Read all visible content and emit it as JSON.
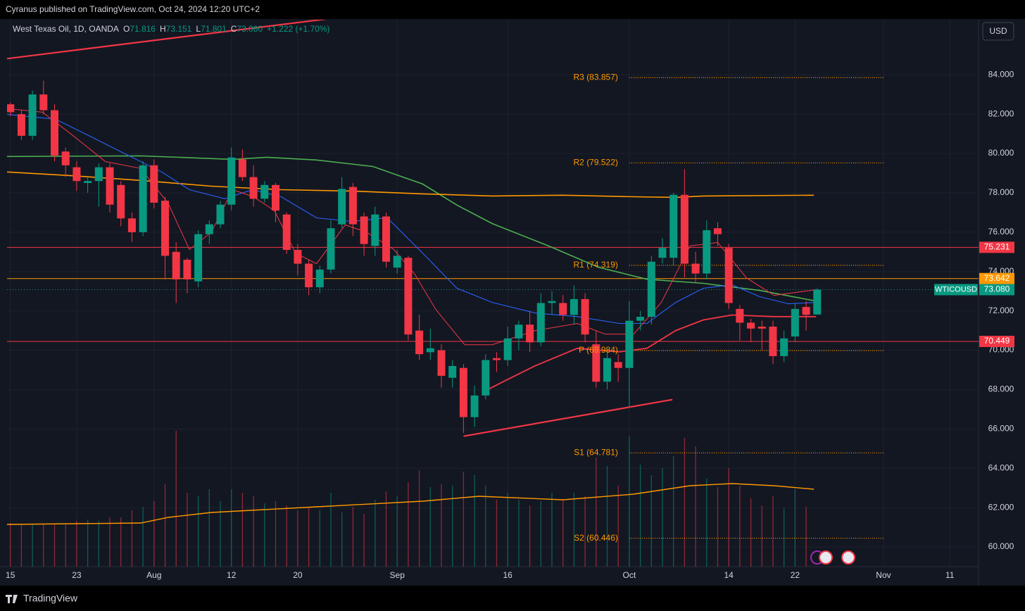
{
  "header": {
    "publisher": "Cyranus published on TradingView.com, Oct 24, 2024 12:20 UTC+2",
    "symbol": "West Texas Oil, 1D, OANDA",
    "ohlc_letters": [
      "O",
      "H",
      "L",
      "C"
    ],
    "close_label": "73.080",
    "change": "+1.222 (+1.70%)",
    "currency": "USD",
    "brand": "TradingView"
  },
  "chart_data": {
    "type": "candlestick",
    "xlim": [
      -0.3,
      87.6
    ],
    "xticks": [
      {
        "value": 0,
        "label": "15"
      },
      {
        "value": 6,
        "label": "23"
      },
      {
        "value": 13,
        "label": "Aug"
      },
      {
        "value": 20,
        "label": "12"
      },
      {
        "value": 26,
        "label": "20"
      },
      {
        "value": 35,
        "label": "Sep"
      },
      {
        "value": 45,
        "label": "16"
      },
      {
        "value": 56,
        "label": "Oct"
      },
      {
        "value": 65,
        "label": "14"
      },
      {
        "value": 71,
        "label": "22"
      },
      {
        "value": 79,
        "label": "Nov"
      },
      {
        "value": 85,
        "label": "11"
      }
    ],
    "ylim": [
      59.0,
      86.8
    ],
    "yticks": [
      {
        "value": 60,
        "label": "60.000"
      },
      {
        "value": 62,
        "label": "62.000"
      },
      {
        "value": 64,
        "label": "64.000"
      },
      {
        "value": 66,
        "label": "66.000"
      },
      {
        "value": 68,
        "label": "68.000"
      },
      {
        "value": 70,
        "label": "70.000"
      },
      {
        "value": 72,
        "label": "72.000"
      },
      {
        "value": 74,
        "label": "74.000"
      },
      {
        "value": 76,
        "label": "76.000"
      },
      {
        "value": 78,
        "label": "78.000"
      },
      {
        "value": 80,
        "label": "80.000"
      },
      {
        "value": 82,
        "label": "82.000"
      },
      {
        "value": 84,
        "label": "84.000"
      }
    ],
    "grid": true,
    "up_color": "#089981",
    "down_color": "#f23645",
    "x": [
      0,
      1,
      2,
      3,
      4,
      5,
      6,
      7,
      8,
      9,
      10,
      11,
      12,
      13,
      14,
      15,
      16,
      17,
      18,
      19,
      20,
      21,
      22,
      23,
      24,
      25,
      26,
      27,
      28,
      29,
      30,
      31,
      32,
      33,
      34,
      35,
      36,
      37,
      38,
      39,
      40,
      41,
      42,
      43,
      44,
      45,
      46,
      47,
      48,
      49,
      50,
      51,
      52,
      53,
      54,
      55,
      56,
      57,
      58,
      59,
      60,
      61,
      62,
      63,
      64,
      65,
      66,
      67,
      68,
      69,
      70,
      71,
      72,
      73
    ],
    "open": [
      82.5,
      82.0,
      80.9,
      83.0,
      82.2,
      80.1,
      79.3,
      78.5,
      78.6,
      79.3,
      78.4,
      76.7,
      76.0,
      79.4,
      77.6,
      75.0,
      74.6,
      73.5,
      75.9,
      76.4,
      77.4,
      79.7,
      78.8,
      77.7,
      78.4,
      76.9,
      75.1,
      74.4,
      73.2,
      74.1,
      76.4,
      78.3,
      76.8,
      75.3,
      76.8,
      74.2,
      74.7,
      71.0,
      69.9,
      70.0,
      68.6,
      69.1,
      66.6,
      67.7,
      69.6,
      69.5,
      70.6,
      71.3,
      70.4,
      72.4,
      72.4,
      71.8,
      72.6,
      70.3,
      68.4,
      69.4,
      69.1,
      71.5,
      71.7,
      74.7,
      74.7,
      77.9,
      74.4,
      73.9,
      76.2,
      75.2,
      72.1,
      71.4,
      71.2,
      71.2,
      69.7,
      70.7,
      72.2,
      71.816
    ],
    "high": [
      82.6,
      82.2,
      83.2,
      83.7,
      82.5,
      80.3,
      79.6,
      78.8,
      79.5,
      79.5,
      78.6,
      77.0,
      79.6,
      79.7,
      77.8,
      75.5,
      74.7,
      76.1,
      76.6,
      77.6,
      80.3,
      80.2,
      79.4,
      78.6,
      78.5,
      77.0,
      75.4,
      74.6,
      74.3,
      76.6,
      78.8,
      78.5,
      77.0,
      77.3,
      77.0,
      75.1,
      74.8,
      71.8,
      71.1,
      70.3,
      69.5,
      69.3,
      68.2,
      69.8,
      69.9,
      71.2,
      71.5,
      72.0,
      72.9,
      73.0,
      72.8,
      73.3,
      72.9,
      71.0,
      70.0,
      69.8,
      72.5,
      72.0,
      74.8,
      75.7,
      78.0,
      79.2,
      75.0,
      76.6,
      76.5,
      75.4,
      72.3,
      71.6,
      71.5,
      71.5,
      71.0,
      72.4,
      72.5,
      73.151
    ],
    "low": [
      81.9,
      80.7,
      80.7,
      82.0,
      79.6,
      78.8,
      78.1,
      78.0,
      77.3,
      77.0,
      76.3,
      75.5,
      75.8,
      77.2,
      73.6,
      72.4,
      72.9,
      73.2,
      75.4,
      76.2,
      77.1,
      78.6,
      77.3,
      77.5,
      76.5,
      74.9,
      73.8,
      72.8,
      72.9,
      73.9,
      76.2,
      75.8,
      74.8,
      74.8,
      74.2,
      73.9,
      70.5,
      69.5,
      69.5,
      68.1,
      68.1,
      65.8,
      66.1,
      67.5,
      68.9,
      69.2,
      70.0,
      69.9,
      70.2,
      71.8,
      71.5,
      71.3,
      70.4,
      68.1,
      68.0,
      68.4,
      67.1,
      71.0,
      71.3,
      74.4,
      74.3,
      73.7,
      73.4,
      73.6,
      75.3,
      72.1,
      70.5,
      70.4,
      70.0,
      69.3,
      69.4,
      70.4,
      71.0,
      71.801
    ],
    "close": [
      82.1,
      80.9,
      83.0,
      82.2,
      79.9,
      79.4,
      78.6,
      78.6,
      79.3,
      77.4,
      76.7,
      76.0,
      79.4,
      77.5,
      74.8,
      73.6,
      73.6,
      75.9,
      76.4,
      77.4,
      79.8,
      78.8,
      77.7,
      78.4,
      77.1,
      75.1,
      74.4,
      73.2,
      74.1,
      76.2,
      78.2,
      76.4,
      75.4,
      76.9,
      74.5,
      74.8,
      70.8,
      69.8,
      70.1,
      68.7,
      69.2,
      66.6,
      67.7,
      69.5,
      69.5,
      70.6,
      71.3,
      70.4,
      72.4,
      72.5,
      71.8,
      72.6,
      70.8,
      68.4,
      69.6,
      69.1,
      71.5,
      71.7,
      74.5,
      75.2,
      77.9,
      74.4,
      73.9,
      76.1,
      75.9,
      72.4,
      71.4,
      71.1,
      71.1,
      69.7,
      70.6,
      72.1,
      71.8,
      73.08
    ],
    "lines": [
      {
        "color": "#4caf50",
        "width": 1.6,
        "x": [
          -0.3,
          11.8,
          20.1,
          23.2,
          27.7,
          32.8,
          37.3,
          40.4,
          43.6,
          48.7,
          53.2,
          57.6,
          62.7,
          67.8,
          72.9
        ],
        "values": [
          79.85,
          79.88,
          79.7,
          79.81,
          79.67,
          79.34,
          78.45,
          77.38,
          76.44,
          75.3,
          74.22,
          73.61,
          73.4,
          73.04,
          72.5
        ]
      },
      {
        "color": "#ff9800",
        "width": 1.6,
        "x": [
          -0.3,
          5.4,
          11.8,
          18.2,
          24.5,
          30.9,
          37.3,
          43.6,
          50.0,
          56.4,
          60.2,
          62.7,
          72.7
        ],
        "values": [
          79.06,
          78.88,
          78.63,
          78.34,
          78.16,
          78.09,
          77.95,
          77.84,
          77.88,
          77.8,
          77.77,
          77.84,
          77.88
        ]
      },
      {
        "color": "#2962ff",
        "width": 1.1,
        "x": [
          -0.3,
          4.1,
          7.3,
          10.5,
          13.7,
          16.2,
          19.4,
          21.9,
          24.5,
          27.7,
          30.9,
          34.1,
          37.3,
          40.4,
          43.6,
          47.5,
          51.3,
          55.1,
          57.6,
          60.2,
          62.7,
          65.3,
          67.8,
          70.4,
          72.9
        ],
        "values": [
          81.99,
          81.74,
          80.85,
          79.95,
          79.06,
          78.16,
          77.7,
          78.16,
          77.8,
          76.73,
          76.55,
          76.73,
          74.94,
          73.15,
          72.43,
          71.89,
          71.71,
          71.36,
          71.36,
          72.43,
          73.15,
          73.33,
          72.72,
          72.36,
          72.43
        ]
      },
      {
        "color": "#f23645",
        "width": 1.0,
        "x": [
          -0.3,
          2.9,
          5.4,
          8.6,
          11.8,
          14.3,
          16.2,
          18.2,
          20.1,
          22.0,
          23.9,
          25.8,
          27.7,
          30.3,
          32.2,
          34.7,
          36.6,
          38.5,
          41.1,
          43.6,
          47.5,
          51.3,
          53.8,
          56.4,
          58.9,
          61.5,
          64.0,
          66.6,
          69.1,
          72.9
        ],
        "values": [
          82.28,
          82.1,
          81.03,
          79.59,
          79.24,
          77.45,
          75.12,
          76.01,
          78.16,
          77.8,
          77.09,
          74.94,
          74.4,
          76.37,
          76.01,
          75.12,
          73.86,
          72.07,
          70.28,
          70.28,
          71.0,
          71.36,
          70.82,
          70.82,
          72.43,
          75.3,
          75.48,
          73.68,
          72.79,
          73.08
        ]
      },
      {
        "color": "#f23645",
        "width": 1.8,
        "x": [
          43.0,
          44.9,
          47.5,
          51.3,
          55.1,
          57.6,
          60.2,
          62.7,
          65.3,
          69.1,
          72.9
        ],
        "values": [
          67.95,
          68.49,
          69.21,
          70.1,
          69.92,
          70.1,
          71.0,
          71.54,
          71.79,
          71.71,
          71.71
        ]
      }
    ],
    "trendlines": [
      {
        "color": "#f23645",
        "x": [
          -0.3,
          29.5
        ],
        "values": [
          84.82,
          86.9
        ]
      },
      {
        "color": "#f23645",
        "x": [
          41.0,
          59.9
        ],
        "values": [
          65.63,
          67.49
        ]
      }
    ],
    "levels": [
      {
        "value": 75.231,
        "color": "#f23645"
      },
      {
        "value": 73.642,
        "color": "#ff9800"
      },
      {
        "value": 70.449,
        "color": "#f23645"
      }
    ],
    "last_price": {
      "name": "WTICOUSD",
      "value": 73.08,
      "label": "73.080",
      "color": "#089981"
    },
    "pivot_color": "#ff9800",
    "pivot_range": [
      56,
      79
    ],
    "pivots": [
      {
        "label": "R3 (83.857)",
        "value": 83.857
      },
      {
        "label": "R2 (79.522)",
        "value": 79.522
      },
      {
        "label": "R1 (74.319)",
        "value": 74.319
      },
      {
        "label": "P (69.984)",
        "value": 69.984
      },
      {
        "label": "S1 (64.781)",
        "value": 64.781
      },
      {
        "label": "S2 (60.446)",
        "value": 60.446
      }
    ],
    "volume": {
      "vlim": [
        0,
        100
      ],
      "values": [
        31,
        30,
        30,
        30,
        30,
        30,
        32.5,
        33.5,
        32.5,
        35,
        35,
        40,
        42.5,
        46.5,
        58.5,
        96.5,
        52.5,
        50,
        55,
        46.5,
        55,
        52.5,
        50,
        45,
        46.5,
        43.5,
        40,
        42.5,
        40,
        52.5,
        38.5,
        42.5,
        37.5,
        47.5,
        53.5,
        50,
        60,
        68.5,
        56.5,
        58.5,
        57.5,
        67.5,
        65,
        57.5,
        47.5,
        52.5,
        47.5,
        43.5,
        46.5,
        52.5,
        47.5,
        52.5,
        50,
        77.5,
        71.5,
        57.5,
        92.5,
        72.5,
        65,
        70,
        78.5,
        91.5,
        85.5,
        62.5,
        56.5,
        70,
        57.5,
        48.5,
        43.5,
        50,
        41.5,
        55,
        42.5,
        null
      ],
      "ma": {
        "color": "#ff9800",
        "x": [
          -0.3,
          11.8,
          14.3,
          18.2,
          27.7,
          37.3,
          42.4,
          50.0,
          56.4,
          61.5,
          65.3,
          69.1,
          72.7
        ],
        "values": [
          30,
          31,
          35,
          38.5,
          42.5,
          46.5,
          50,
          47.5,
          51.5,
          57.5,
          59,
          57.5,
          55
        ]
      }
    }
  }
}
